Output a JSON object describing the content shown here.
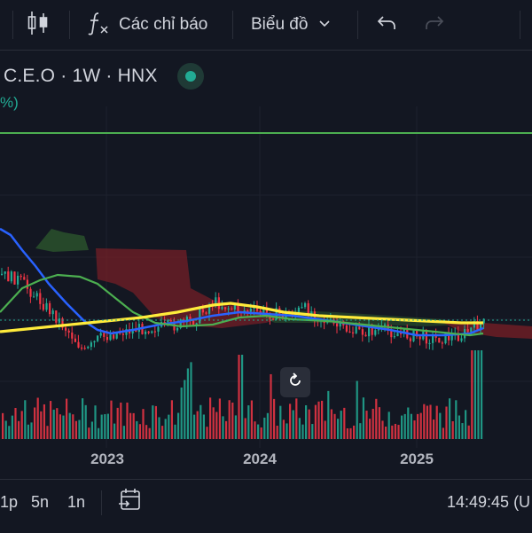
{
  "toolbar": {
    "indicators_label": "Các chỉ báo",
    "chart_type_label": "Biểu đồ",
    "icons": [
      "candlestick-icon",
      "function-icon",
      "chevron-down-icon",
      "undo-icon",
      "redo-icon"
    ]
  },
  "symbol": {
    "title": "C.E.O · 1W · HNX",
    "change_fragment": "%)"
  },
  "axis": {
    "years": [
      "2023",
      "2024",
      "2025"
    ]
  },
  "bottom_bar": {
    "ranges": [
      "1p",
      "5n",
      "1n"
    ],
    "time": "14:49:45 (U"
  },
  "colors": {
    "background": "#131722",
    "up": "#22ab94",
    "down": "#f23645",
    "ma_fast": "#2962ff",
    "ma_mid": "#4caf50",
    "ma_slow": "#ffeb3b",
    "hline": "#4caf50",
    "cloud_bull": "#2e5a2e",
    "cloud_bear": "#7a1f26"
  },
  "chart_data": {
    "type": "candlestick",
    "x_labels": [
      "2023",
      "2024",
      "2025"
    ],
    "indicators": [
      "Ichimoku cloud",
      "moving averages",
      "volume"
    ],
    "grid": true
  }
}
